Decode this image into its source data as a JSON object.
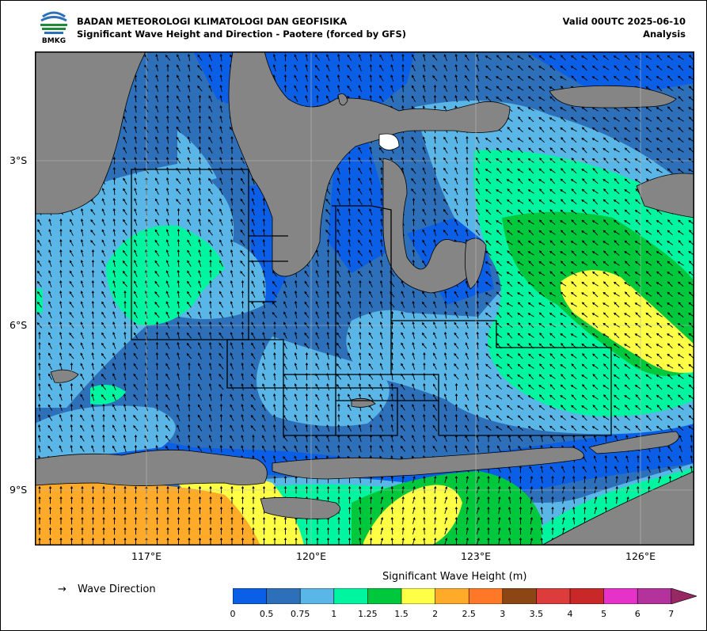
{
  "header": {
    "org": "BADAN METEOROLOGI KLIMATOLOGI DAN GEOFISIKA",
    "subtitle": "Significant Wave Height and Direction - Paotere (forced by GFS)",
    "valid": "Valid 00UTC 2025-06-10",
    "mode": "Analysis",
    "logo_text": "BMKG"
  },
  "axes": {
    "y_labels": [
      "3°S",
      "6°S",
      "9°S"
    ],
    "x_labels": [
      "117°E",
      "120°E",
      "123°E",
      "126°E"
    ]
  },
  "legend": {
    "arrow_glyph": "→",
    "wave_direction_label": "Wave Direction",
    "colorbar_title": "Significant Wave Height (m)",
    "ticks": [
      "0",
      "0.5",
      "0.75",
      "1",
      "1.25",
      "1.5",
      "2",
      "2.5",
      "3",
      "3.5",
      "4",
      "5",
      "6",
      "7"
    ],
    "colors": [
      "#0a5fe6",
      "#2d6fb8",
      "#5ab6e6",
      "#00f5a0",
      "#00c83c",
      "#ffff46",
      "#ffaa28",
      "#ff7828",
      "#8c4614",
      "#dc3c3c",
      "#c82828",
      "#e632c8",
      "#b4329b",
      "#962864"
    ]
  },
  "map_colors": {
    "land": "#858585",
    "coast": "#000000"
  }
}
